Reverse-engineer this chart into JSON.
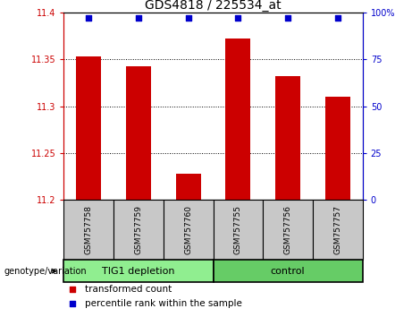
{
  "title": "GDS4818 / 225534_at",
  "samples": [
    "GSM757758",
    "GSM757759",
    "GSM757760",
    "GSM757755",
    "GSM757756",
    "GSM757757"
  ],
  "bar_values": [
    11.353,
    11.343,
    11.228,
    11.372,
    11.332,
    11.31
  ],
  "percentile_values": [
    97,
    97,
    97,
    97,
    97,
    97
  ],
  "bar_color": "#cc0000",
  "percentile_color": "#0000cc",
  "ylim_left": [
    11.2,
    11.4
  ],
  "ylim_right": [
    0,
    100
  ],
  "yticks_left": [
    11.2,
    11.25,
    11.3,
    11.35,
    11.4
  ],
  "yticks_right": [
    0,
    25,
    50,
    75,
    100
  ],
  "groups": [
    {
      "label": "TIG1 depletion",
      "indices": [
        0,
        1,
        2
      ],
      "color": "#90ee90"
    },
    {
      "label": "control",
      "indices": [
        3,
        4,
        5
      ],
      "color": "#66cc66"
    }
  ],
  "group_label": "genotype/variation",
  "legend_bar": "transformed count",
  "legend_pct": "percentile rank within the sample",
  "left_axis_color": "#cc0000",
  "right_axis_color": "#0000cc",
  "bar_width": 0.5,
  "sample_bg_color": "#c8c8c8"
}
